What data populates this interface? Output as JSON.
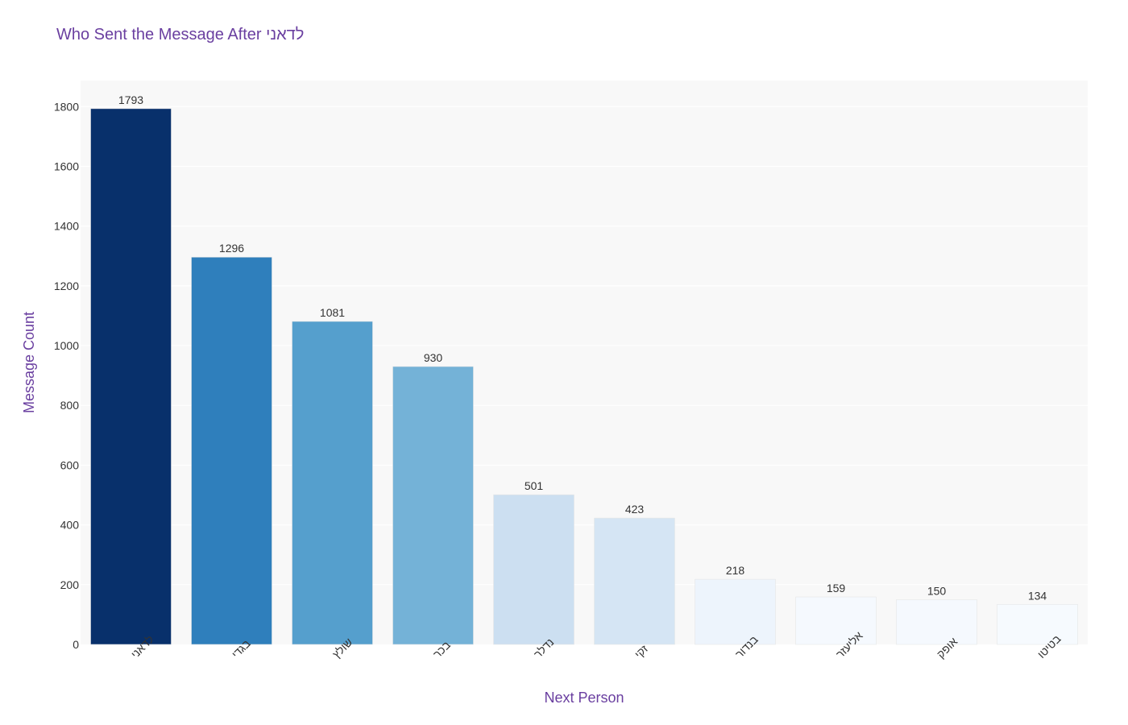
{
  "chart_data": {
    "type": "bar",
    "title": "Who Sent the Message After לדאני",
    "xlabel": "Next Person",
    "ylabel": "Message Count",
    "categories": [
      "לדאני",
      "בגדי",
      "שולץ",
      "בכר",
      "נדלר",
      "זקי",
      "בנדור",
      "אליעזר",
      "אופק",
      "בטיטו"
    ],
    "values": [
      1793,
      1296,
      1081,
      930,
      501,
      423,
      218,
      159,
      150,
      134
    ],
    "colors": [
      "#08306b",
      "#2f7fbc",
      "#559fcd",
      "#74b2d7",
      "#ccdff1",
      "#d5e5f4",
      "#edf4fc",
      "#f5f9fe",
      "#f5f9fe",
      "#f6fafe"
    ],
    "yticks": [
      0,
      200,
      400,
      600,
      800,
      1000,
      1200,
      1400,
      1600,
      1800
    ],
    "ylim": [
      0,
      1887
    ],
    "grid": true,
    "legend": "none"
  }
}
